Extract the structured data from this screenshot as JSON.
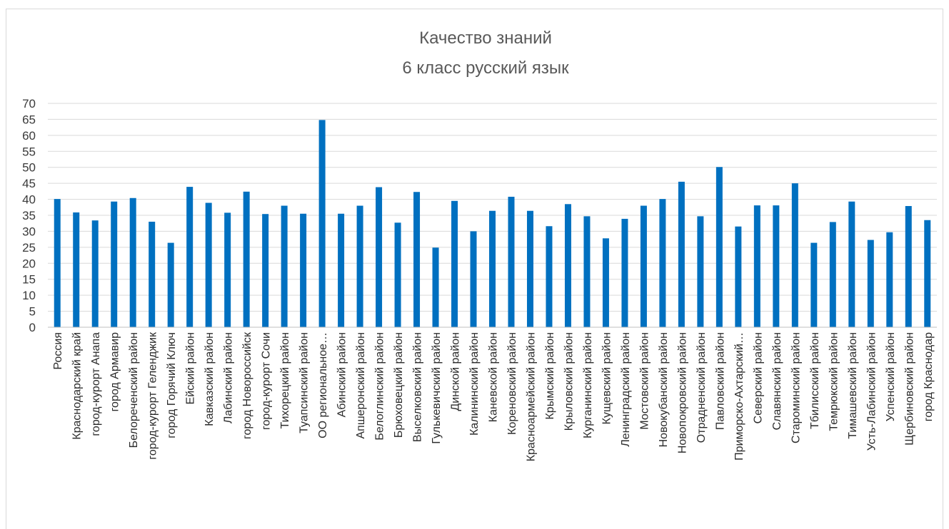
{
  "chart_data": {
    "type": "bar",
    "title": "Качество знаний",
    "subtitle": "6 класс русский язык",
    "xlabel": "",
    "ylabel": "",
    "ylim": [
      0,
      70
    ],
    "yticks": [
      0,
      5,
      10,
      15,
      20,
      25,
      30,
      35,
      40,
      45,
      50,
      55,
      60,
      65,
      70
    ],
    "grid": true,
    "bar_color": "#0070c0",
    "grid_color": "#d9d9d9",
    "categories": [
      "Россия",
      "Краснодарский край",
      "город-курорт Анапа",
      "город Армавир",
      "Белореченский район",
      "город-курорт Геленджик",
      "город Горячий Ключ",
      "Ейский  район",
      "Кавказский  район",
      "Лабинский  район",
      "город Новороссийск",
      "город-курорт Сочи",
      "Тихорецкий  район",
      "Туапсинский  район",
      "ОО региональное…",
      "Абинский  район",
      "Апшеронский  район",
      "Белоглинский  район",
      "Брюховецкий  район",
      "Выселковский  район",
      "Гулькевичский  район",
      "Динской  район",
      "Калининский  район",
      "Каневской  район",
      "Кореновский  район",
      "Красноармейский  район",
      "Крымский  район",
      "Крыловский  район",
      "Курганинский  район",
      "Кущевский  район",
      "Ленинградский  район",
      "Мостовский  район",
      "Новокубанский  район",
      "Новопокровский  район",
      "Отрадненский  район",
      "Павловский  район",
      "Приморско-Ахтарский…",
      "Северский  район",
      "Славянский  район",
      "Староминский  район",
      "Тбилисский  район",
      "Темрюкский  район",
      "Тимашевский  район",
      "Усть-Лабинский  район",
      "Успенский  район",
      "Щербиновский  район",
      "город Краснодар"
    ],
    "values": [
      40.1,
      35.9,
      33.4,
      39.3,
      40.4,
      33.0,
      26.4,
      43.9,
      38.9,
      35.8,
      42.4,
      35.4,
      38.0,
      35.5,
      64.8,
      35.5,
      38.0,
      43.8,
      32.7,
      42.3,
      24.9,
      39.5,
      30.0,
      36.4,
      40.8,
      36.4,
      31.6,
      38.5,
      34.7,
      27.8,
      33.9,
      38.0,
      40.1,
      45.5,
      34.7,
      50.1,
      31.5,
      38.1,
      38.1,
      45.0,
      26.4,
      32.9,
      39.3,
      27.3,
      29.7,
      37.9,
      33.5
    ]
  }
}
